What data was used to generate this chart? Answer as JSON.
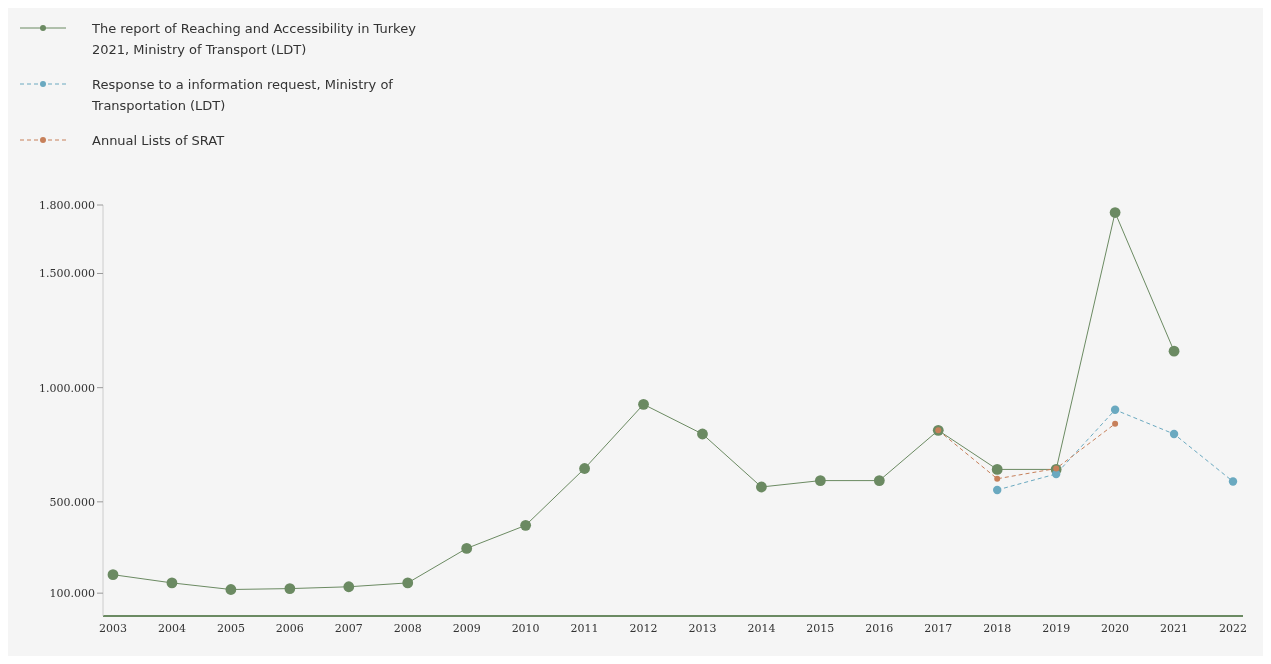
{
  "chart_data": {
    "type": "line",
    "categories": [
      "2003",
      "2004",
      "2005",
      "2006",
      "2007",
      "2008",
      "2009",
      "2010",
      "2011",
      "2012",
      "2013",
      "2014",
      "2015",
      "2016",
      "2017",
      "2018",
      "2019",
      "2020",
      "2021",
      "2022"
    ],
    "series": [
      {
        "name": "The report of  Reaching and Accessibility in Turkey 2021, Ministry of Transport (LDT)",
        "color": "#6b8a62",
        "line_style": "solid",
        "values": [
          181000,
          145000,
          116000,
          120000,
          128000,
          145000,
          296000,
          397000,
          646000,
          927000,
          797000,
          565000,
          593000,
          593000,
          813000,
          642000,
          642000,
          1767000,
          1160000,
          null
        ]
      },
      {
        "name": "Response to a information request, Ministry of Transportation (LDT)",
        "color": "#6aa9c0",
        "line_style": "dashed",
        "values": [
          null,
          null,
          null,
          null,
          null,
          null,
          null,
          null,
          null,
          null,
          null,
          null,
          null,
          null,
          null,
          552000,
          622000,
          903000,
          797000,
          589000
        ]
      },
      {
        "name": "Annual Lists of SRAT",
        "color": "#c7805a",
        "line_style": "dashed",
        "values": [
          null,
          null,
          null,
          null,
          null,
          null,
          null,
          null,
          null,
          null,
          null,
          null,
          null,
          null,
          813000,
          601000,
          646000,
          842000,
          null,
          null
        ]
      }
    ],
    "ylim": [
      0,
      1800000
    ],
    "yticks": [
      {
        "value": 100000,
        "label": "100.000"
      },
      {
        "value": 500000,
        "label": "500.000"
      },
      {
        "value": 1000000,
        "label": "1.000.000"
      },
      {
        "value": 1500000,
        "label": "1.500.000"
      },
      {
        "value": 1800000,
        "label": "1.800.000"
      }
    ],
    "grid": false,
    "legend": "top left",
    "marker": "circle"
  }
}
